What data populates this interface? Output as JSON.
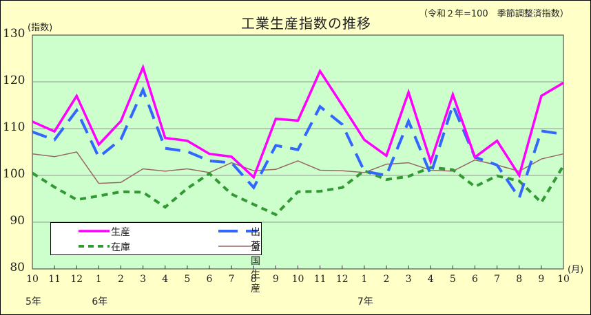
{
  "chart": {
    "title": "工業生産指数の推移",
    "subtitle": "（令和２年=100　季節調整済指数）",
    "y_unit": "(指数)",
    "x_unit": "(月)",
    "y_ticks": [
      "130",
      "120",
      "110",
      "100",
      "90",
      "80"
    ],
    "x_ticks": [
      "10",
      "11",
      "12",
      "1",
      "2",
      "3",
      "4",
      "5",
      "6",
      "7",
      "8",
      "9",
      "10",
      "11",
      "12",
      "1",
      "2",
      "3",
      "4",
      "5",
      "6",
      "7",
      "8",
      "9",
      "10"
    ],
    "year_labels": [
      {
        "label": "5年",
        "index": 0
      },
      {
        "label": "6年",
        "index": 3
      },
      {
        "label": "7年",
        "index": 15
      }
    ],
    "legend": {
      "production": "生産",
      "shipments": "出荷",
      "inventory": "在庫",
      "national_production": "全国生産"
    },
    "colors": {
      "background": "#ffffc8",
      "plot_background": "#ccffcc",
      "production": "#ff00ff",
      "shipments": "#3366ff",
      "inventory": "#339933",
      "national_production": "#996666",
      "grid": "#999999"
    }
  },
  "chart_data": {
    "type": "line",
    "title": "工業生産指数の推移",
    "subtitle": "令和２年=100 季節調整済指数",
    "xlabel": "(月)",
    "ylabel": "(指数)",
    "ylim": [
      80,
      130
    ],
    "yticks": [
      80,
      90,
      100,
      110,
      120,
      130
    ],
    "grid": true,
    "legend_position": "lower-left inside",
    "x": [
      "5年10",
      "11",
      "12",
      "6年1",
      "2",
      "3",
      "4",
      "5",
      "6",
      "7",
      "8",
      "9",
      "10",
      "11",
      "12",
      "7年1",
      "2",
      "3",
      "4",
      "5",
      "6",
      "7",
      "8",
      "9",
      "10"
    ],
    "series": [
      {
        "name": "生産",
        "style": "solid",
        "values": [
          111.5,
          109.4,
          117.0,
          106.6,
          111.6,
          123.1,
          108.0,
          107.4,
          104.6,
          104.0,
          99.6,
          112.1,
          111.7,
          122.3,
          115.0,
          107.6,
          104.2,
          117.8,
          102.9,
          117.3,
          103.9,
          107.4,
          100.0,
          117.0,
          119.8
        ]
      },
      {
        "name": "出荷",
        "style": "dash",
        "values": [
          109.3,
          107.6,
          113.9,
          103.9,
          107.7,
          118.3,
          105.8,
          105.1,
          103.1,
          102.7,
          97.4,
          106.4,
          105.5,
          114.7,
          110.9,
          100.9,
          100.0,
          111.6,
          100.2,
          115.0,
          103.9,
          102.2,
          95.2,
          109.5,
          108.8
        ]
      },
      {
        "name": "在庫",
        "style": "dot-dash",
        "values": [
          100.5,
          97.5,
          94.8,
          95.6,
          96.5,
          96.4,
          93.2,
          97.2,
          100.4,
          96.0,
          93.8,
          91.6,
          96.5,
          96.6,
          97.4,
          101.0,
          99.1,
          99.8,
          101.7,
          101.2,
          97.6,
          99.9,
          98.8,
          94.2,
          102.1
        ]
      },
      {
        "name": "全国生産",
        "style": "thin",
        "values": [
          104.6,
          104.0,
          105.0,
          98.3,
          98.5,
          101.4,
          100.9,
          101.4,
          100.6,
          102.7,
          101.0,
          101.3,
          103.1,
          101.1,
          101.0,
          100.6,
          102.4,
          102.7,
          101.1,
          100.9,
          103.3,
          102.2,
          100.9,
          103.5,
          104.6
        ]
      }
    ]
  }
}
